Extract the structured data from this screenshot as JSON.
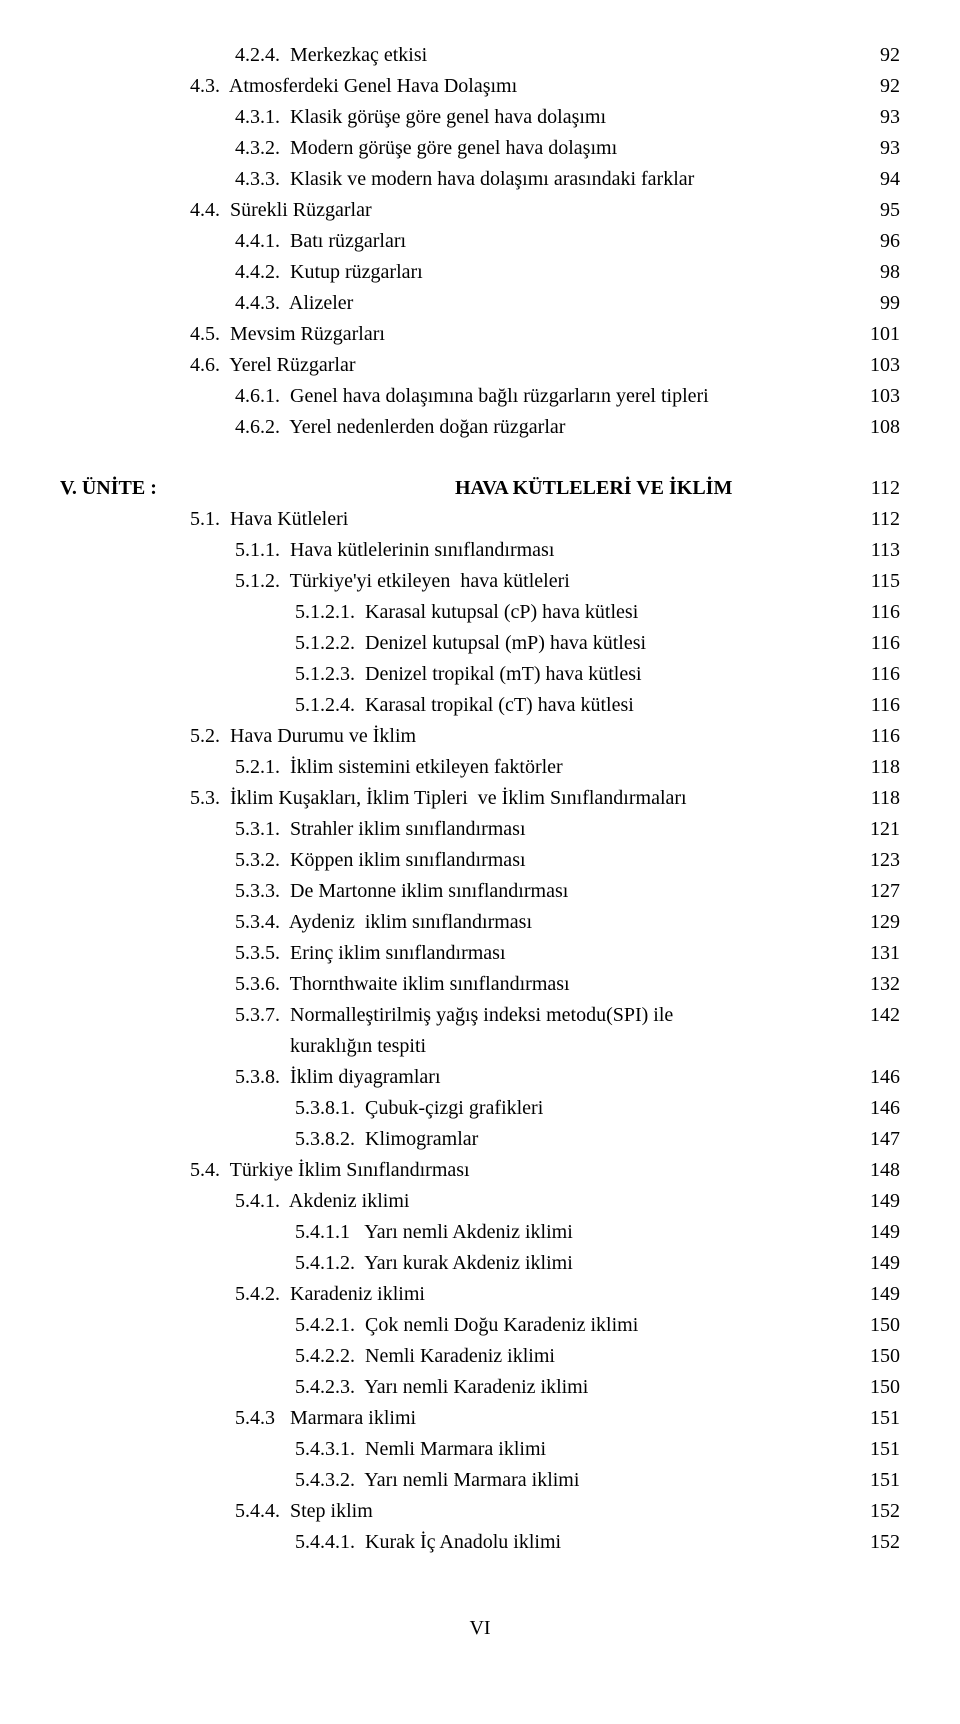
{
  "block1": [
    {
      "indent": "indent-2",
      "text": "4.2.4.  Merkezkaç etkisi",
      "page": "92"
    },
    {
      "indent": "indent-1",
      "text": "4.3.  Atmosferdeki Genel Hava Dolaşımı",
      "page": "92"
    },
    {
      "indent": "indent-2",
      "text": "4.3.1.  Klasik görüşe göre genel hava dolaşımı",
      "page": "93"
    },
    {
      "indent": "indent-2",
      "text": "4.3.2.  Modern görüşe göre genel hava dolaşımı",
      "page": "93"
    },
    {
      "indent": "indent-2",
      "text": "4.3.3.  Klasik ve modern hava dolaşımı arasındaki farklar",
      "page": "94"
    },
    {
      "indent": "indent-1",
      "text": "4.4.  Sürekli Rüzgarlar",
      "page": "95"
    },
    {
      "indent": "indent-2",
      "text": "4.4.1.  Batı rüzgarları",
      "page": "96"
    },
    {
      "indent": "indent-2",
      "text": "4.4.2.  Kutup rüzgarları",
      "page": "98"
    },
    {
      "indent": "indent-2",
      "text": "4.4.3.  Alizeler",
      "page": "99"
    },
    {
      "indent": "indent-1",
      "text": "4.5.  Mevsim Rüzgarları",
      "page": "101"
    },
    {
      "indent": "indent-1",
      "text": "4.6.  Yerel Rüzgarlar",
      "page": "103"
    },
    {
      "indent": "indent-2",
      "text": "4.6.1.  Genel hava dolaşımına bağlı rüzgarların yerel tipleri",
      "page": "103"
    },
    {
      "indent": "indent-2",
      "text": "4.6.2.  Yerel nedenlerden doğan rüzgarlar",
      "page": "108"
    }
  ],
  "section": {
    "unit": "V. ÜNİTE :",
    "title": "HAVA KÜTLELERİ VE İKLİM",
    "page": "112"
  },
  "block2": [
    {
      "indent": "indent-1",
      "text": "5.1.  Hava Kütleleri",
      "page": "112"
    },
    {
      "indent": "indent-2",
      "text": "5.1.1.  Hava kütlelerinin sınıflandırması",
      "page": "113"
    },
    {
      "indent": "indent-2",
      "text": "5.1.2.  Türkiye'yi etkileyen  hava kütleleri",
      "page": "115"
    },
    {
      "indent": "indent-2b",
      "text": "5.1.2.1.  Karasal kutupsal (cP) hava kütlesi",
      "page": "116"
    },
    {
      "indent": "indent-2b",
      "text": "5.1.2.2.  Denizel kutupsal (mP) hava kütlesi",
      "page": "116"
    },
    {
      "indent": "indent-2b",
      "text": "5.1.2.3.  Denizel tropikal (mT) hava kütlesi",
      "page": "116"
    },
    {
      "indent": "indent-2b",
      "text": "5.1.2.4.  Karasal tropikal (cT) hava kütlesi",
      "page": "116"
    },
    {
      "indent": "indent-1",
      "text": "5.2.  Hava Durumu ve İklim",
      "page": "116"
    },
    {
      "indent": "indent-2",
      "text": "5.2.1.  İklim sistemini etkileyen faktörler",
      "page": "118"
    },
    {
      "indent": "indent-1",
      "text": "5.3.  İklim Kuşakları, İklim Tipleri  ve İklim Sınıflandırmaları",
      "page": "118"
    },
    {
      "indent": "indent-2",
      "text": "5.3.1.  Strahler iklim sınıflandırması",
      "page": "121"
    },
    {
      "indent": "indent-2",
      "text": "5.3.2.  Köppen iklim sınıflandırması",
      "page": "123"
    },
    {
      "indent": "indent-2",
      "text": "5.3.3.  De Martonne iklim sınıflandırması",
      "page": "127"
    },
    {
      "indent": "indent-2",
      "text": "5.3.4.  Aydeniz  iklim sınıflandırması",
      "page": "129"
    },
    {
      "indent": "indent-2",
      "text": "5.3.5.  Erinç iklim sınıflandırması",
      "page": "131"
    },
    {
      "indent": "indent-2",
      "text": "5.3.6.  Thornthwaite iklim sınıflandırması",
      "page": "132"
    },
    {
      "indent": "indent-2",
      "text": "5.3.7.  Normalleştirilmiş yağış indeksi metodu(SPI) ile\n           kuraklığın tespiti",
      "page": "142"
    },
    {
      "indent": "indent-2",
      "text": "5.3.8.  İklim diyagramları",
      "page": "146"
    },
    {
      "indent": "indent-2b",
      "text": "5.3.8.1.  Çubuk-çizgi grafikleri",
      "page": "146"
    },
    {
      "indent": "indent-2b",
      "text": "5.3.8.2.  Klimogramlar",
      "page": "147"
    },
    {
      "indent": "indent-1",
      "text": "5.4.  Türkiye İklim Sınıflandırması",
      "page": "148"
    },
    {
      "indent": "indent-2",
      "text": "5.4.1.  Akdeniz iklimi",
      "page": "149"
    },
    {
      "indent": "indent-2b",
      "text": "5.4.1.1   Yarı nemli Akdeniz iklimi",
      "page": "149"
    },
    {
      "indent": "indent-2b",
      "text": "5.4.1.2.  Yarı kurak Akdeniz iklimi",
      "page": "149"
    },
    {
      "indent": "indent-2",
      "text": "5.4.2.  Karadeniz iklimi",
      "page": "149"
    },
    {
      "indent": "indent-2b",
      "text": "5.4.2.1.  Çok nemli Doğu Karadeniz iklimi",
      "page": "150"
    },
    {
      "indent": "indent-2b",
      "text": "5.4.2.2.  Nemli Karadeniz iklimi",
      "page": "150"
    },
    {
      "indent": "indent-2b",
      "text": "5.4.2.3.  Yarı nemli Karadeniz iklimi",
      "page": "150"
    },
    {
      "indent": "indent-2",
      "text": "5.4.3   Marmara iklimi",
      "page": "151"
    },
    {
      "indent": "indent-2b",
      "text": "5.4.3.1.  Nemli Marmara iklimi",
      "page": "151"
    },
    {
      "indent": "indent-2b",
      "text": "5.4.3.2.  Yarı nemli Marmara iklimi",
      "page": "151"
    },
    {
      "indent": "indent-2",
      "text": "5.4.4.  Step iklim",
      "page": "152"
    },
    {
      "indent": "indent-2b",
      "text": "5.4.4.1.  Kurak İç Anadolu iklimi",
      "page": "152"
    }
  ],
  "footer": "VI"
}
